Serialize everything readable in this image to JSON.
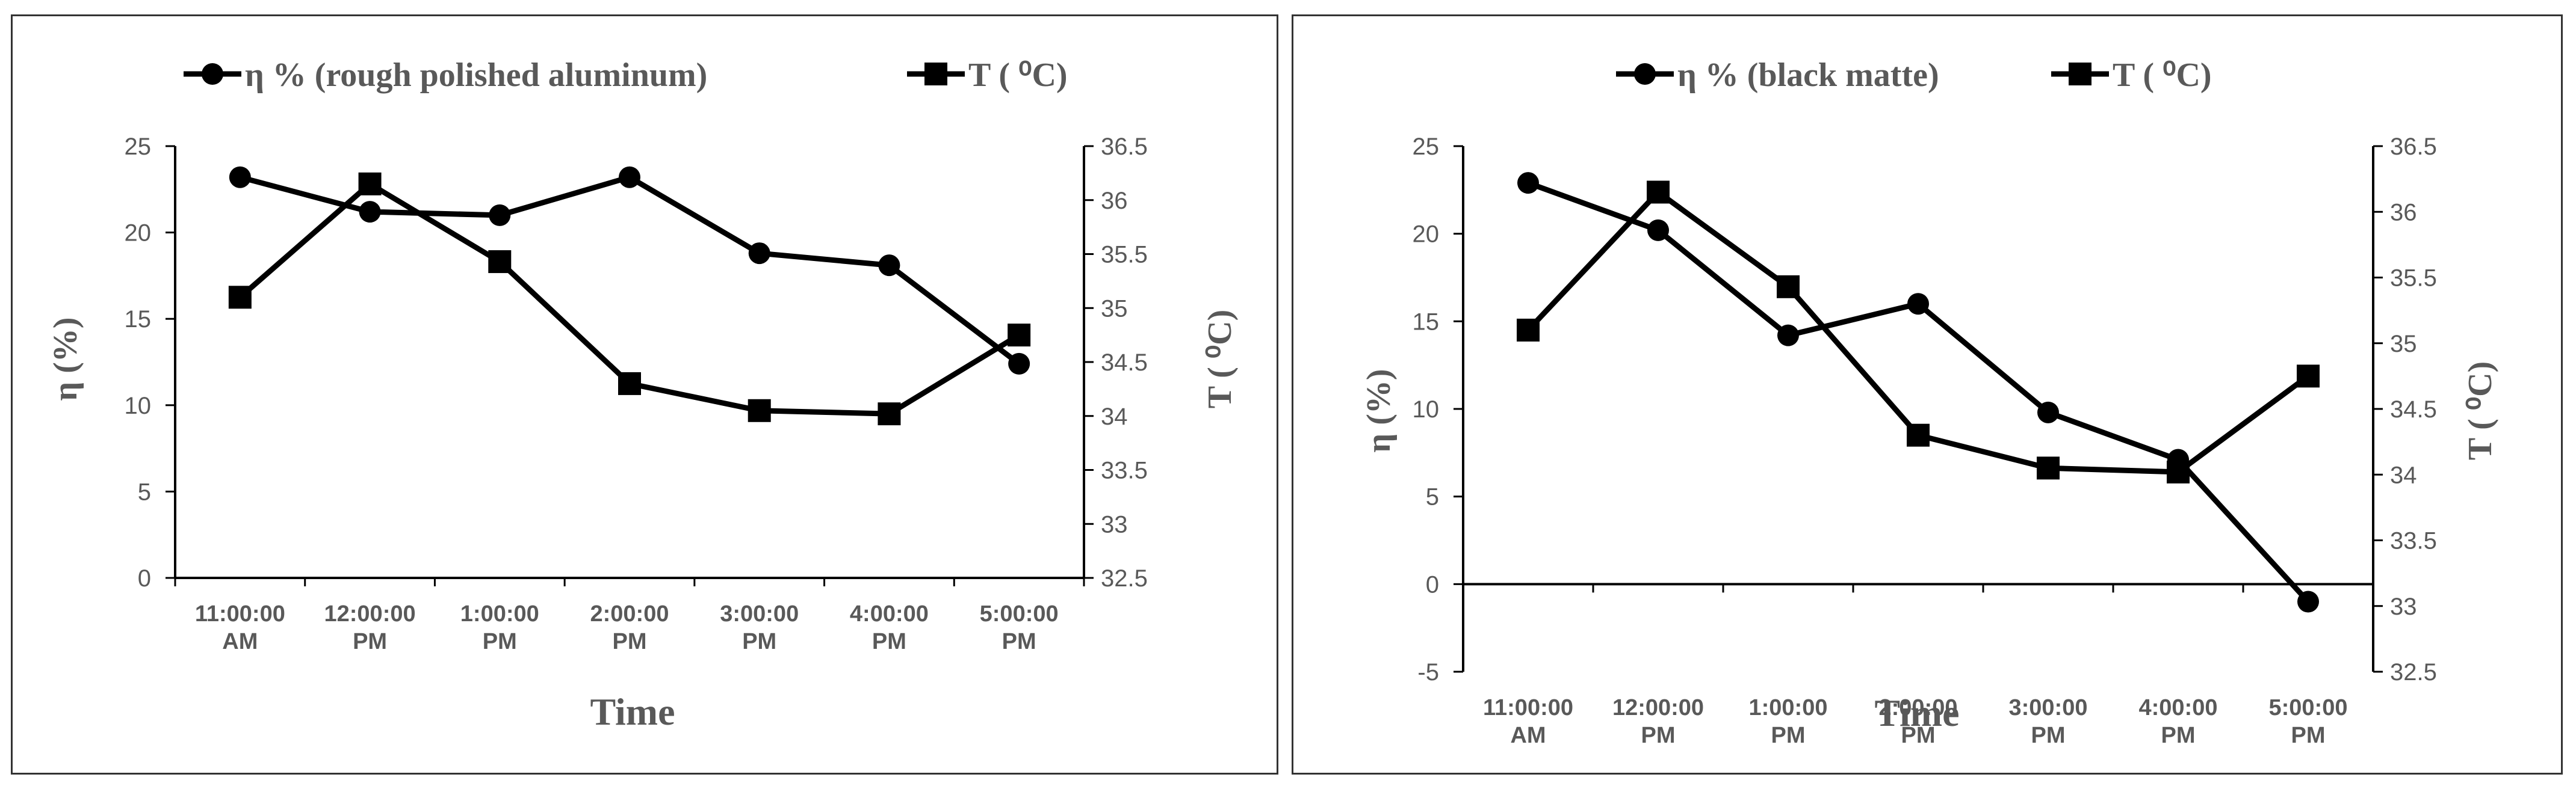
{
  "chart_data": [
    {
      "type": "line",
      "categories": [
        [
          "11:00:00",
          "AM"
        ],
        [
          "12:00:00",
          "PM"
        ],
        [
          "1:00:00",
          "PM"
        ],
        [
          "2:00:00",
          "PM"
        ],
        [
          "3:00:00",
          "PM"
        ],
        [
          "4:00:00",
          "PM"
        ],
        [
          "5:00:00",
          "PM"
        ]
      ],
      "series": [
        {
          "name": "η % (rough polished aluminum)",
          "marker": "circle",
          "axis": "left",
          "values": [
            23.2,
            21.2,
            21.0,
            23.2,
            18.8,
            18.1,
            12.4
          ]
        },
        {
          "name": "T (  ⁰C)",
          "marker": "square",
          "axis": "right",
          "values": [
            35.1,
            36.15,
            35.43,
            34.3,
            34.05,
            34.02,
            34.75
          ]
        }
      ],
      "xlabel": "Time",
      "ylabel": "η (%)",
      "ylabel_right": "T (  ⁰C)",
      "ylim": [
        0,
        25
      ],
      "y_ticks": [
        "0",
        "5",
        "10",
        "15",
        "20",
        "25"
      ],
      "ylim_right": [
        32.5,
        36.5
      ],
      "y_ticks_right": [
        "32.5",
        "33",
        "33.5",
        "34",
        "34.5",
        "35",
        "35.5",
        "36",
        "36.5"
      ],
      "grid": false,
      "legend": "top"
    },
    {
      "type": "line",
      "categories": [
        [
          "11:00:00",
          "AM"
        ],
        [
          "12:00:00",
          "PM"
        ],
        [
          "1:00:00",
          "PM"
        ],
        [
          "2:00:00",
          "PM"
        ],
        [
          "3:00:00",
          "PM"
        ],
        [
          "4:00:00",
          "PM"
        ],
        [
          "5:00:00",
          "PM"
        ]
      ],
      "series": [
        {
          "name": "η % (black matte)",
          "marker": "circle",
          "axis": "left",
          "values": [
            22.9,
            20.2,
            14.2,
            16.0,
            9.8,
            7.1,
            -1.0
          ]
        },
        {
          "name": "T (  ⁰C)",
          "marker": "square",
          "axis": "right",
          "values": [
            35.1,
            36.15,
            35.43,
            34.3,
            34.05,
            34.02,
            34.75
          ]
        }
      ],
      "xlabel": "Time",
      "ylabel": "η (%)",
      "ylabel_right": "T (  ⁰C)",
      "ylim": [
        -5,
        25
      ],
      "y_ticks": [
        "-5",
        "0",
        "5",
        "10",
        "15",
        "20",
        "25"
      ],
      "ylim_right": [
        32.5,
        36.5
      ],
      "y_ticks_right": [
        "32.5",
        "33",
        "33.5",
        "34",
        "34.5",
        "35",
        "35.5",
        "36",
        "36.5"
      ],
      "grid": false,
      "legend": "top"
    }
  ],
  "colors": {
    "line": "#000000",
    "axis": "#000000",
    "text": "#595959",
    "border": "#333333"
  }
}
